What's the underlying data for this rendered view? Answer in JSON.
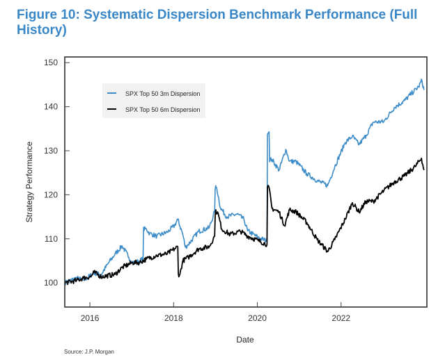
{
  "figure": {
    "title": "Figure 10: Systematic Dispersion Benchmark Performance (Full History)",
    "source": "Source: J.P. Morgan"
  },
  "chart_data": {
    "type": "line",
    "title": "Figure 10: Systematic Dispersion Benchmark Performance (Full History)",
    "xlabel": "Date",
    "ylabel": "Strategy Performance",
    "xlim": [
      2015.4,
      2024.05
    ],
    "ylim": [
      94.5,
      151.3
    ],
    "xticks": [
      2016,
      2018,
      2020,
      2022
    ],
    "xtick_labels": [
      "2016",
      "2018",
      "2020",
      "2022"
    ],
    "yticks": [
      100,
      110,
      120,
      130,
      140,
      150
    ],
    "ytick_labels": [
      "100",
      "110",
      "120",
      "130",
      "140",
      "150"
    ],
    "grid": false,
    "legend_position": "top-left",
    "series": [
      {
        "name": "SPX Top 50 3m Dispersion",
        "color": "#3d8cc8",
        "x": [
          2015.4,
          2015.68,
          2015.85,
          2016.1,
          2016.27,
          2016.43,
          2016.6,
          2016.77,
          2016.93,
          2017.02,
          2017.18,
          2017.27,
          2017.35,
          2017.43,
          2017.6,
          2017.85,
          2018.02,
          2018.1,
          2018.22,
          2018.28,
          2018.35,
          2018.6,
          2018.85,
          2018.98,
          2019.03,
          2019.12,
          2019.27,
          2019.52,
          2019.68,
          2019.77,
          2020.02,
          2020.23,
          2020.28,
          2020.35,
          2020.52,
          2020.68,
          2020.77,
          2020.93,
          2021.18,
          2021.43,
          2021.68,
          2021.85,
          2022.1,
          2022.27,
          2022.43,
          2022.6,
          2022.77,
          2023.02,
          2023.27,
          2023.52,
          2023.68,
          2023.85,
          2023.93,
          2023.98
        ],
        "values": [
          100.0,
          101.1,
          100.6,
          102.2,
          101.9,
          104.3,
          106.5,
          108.4,
          105.8,
          104.6,
          104.9,
          105.5,
          112.2,
          111.2,
          110.6,
          111.5,
          113.0,
          114.4,
          111.0,
          108.1,
          108.7,
          111.7,
          112.5,
          116.1,
          121.6,
          117.0,
          115.0,
          115.6,
          114.4,
          111.8,
          110.3,
          109.5,
          134.3,
          128.0,
          125.6,
          130.3,
          127.6,
          127.5,
          124.8,
          123.2,
          122.1,
          126.4,
          131.9,
          133.3,
          131.4,
          133.5,
          136.5,
          136.6,
          139.8,
          141.4,
          143.0,
          144.5,
          146.0,
          143.8
        ]
      },
      {
        "name": "SPX Top 50 6m Dispersion",
        "color": "#000000",
        "x": [
          2015.4,
          2015.68,
          2015.85,
          2016.02,
          2016.1,
          2016.27,
          2016.6,
          2016.77,
          2017.02,
          2017.18,
          2017.35,
          2017.6,
          2017.85,
          2018.02,
          2018.1,
          2018.15,
          2018.22,
          2018.35,
          2018.6,
          2018.85,
          2018.98,
          2019.05,
          2019.15,
          2019.35,
          2019.6,
          2019.77,
          2020.02,
          2020.23,
          2020.28,
          2020.35,
          2020.52,
          2020.65,
          2020.77,
          2020.93,
          2021.18,
          2021.43,
          2021.68,
          2021.85,
          2022.1,
          2022.27,
          2022.43,
          2022.6,
          2022.77,
          2023.02,
          2023.27,
          2023.52,
          2023.77,
          2023.92,
          2023.98
        ],
        "values": [
          100.0,
          100.5,
          101.1,
          101.4,
          102.4,
          101.4,
          101.9,
          103.5,
          104.6,
          104.6,
          105.4,
          106.2,
          106.6,
          107.7,
          108.2,
          101.9,
          105.0,
          105.8,
          107.7,
          108.2,
          110.6,
          116.1,
          112.2,
          111.0,
          111.7,
          110.6,
          109.6,
          108.7,
          121.6,
          116.9,
          116.1,
          113.0,
          116.6,
          116.1,
          113.7,
          109.8,
          107.1,
          109.8,
          114.5,
          118.2,
          116.1,
          118.5,
          118.5,
          120.9,
          122.9,
          124.3,
          126.4,
          128.3,
          125.6
        ]
      }
    ]
  }
}
